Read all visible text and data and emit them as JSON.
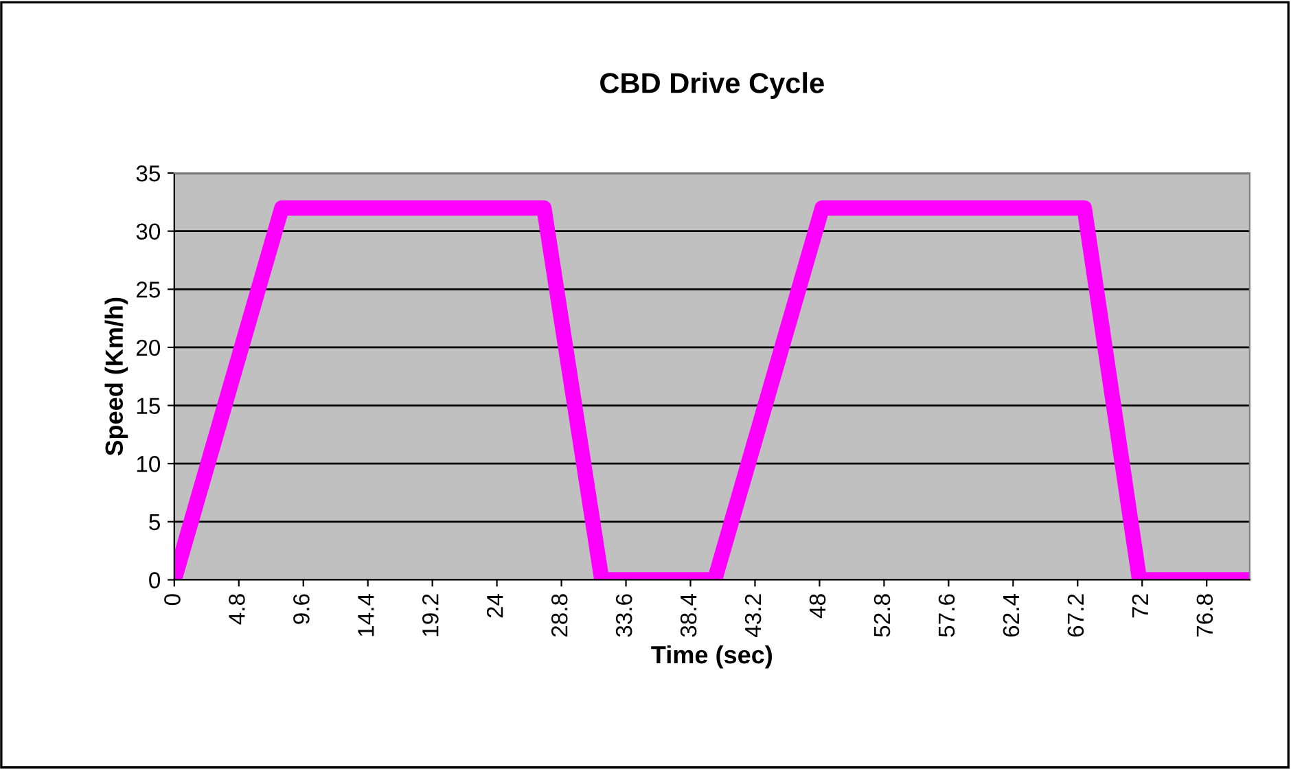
{
  "chart_data": {
    "type": "line",
    "title": "CBD Drive Cycle",
    "xlabel": "Time (sec)",
    "ylabel": "Speed (Km/h)",
    "x": [
      0,
      8,
      27.5,
      31.8,
      40.2,
      48.2,
      67.7,
      71.8,
      80
    ],
    "series": [
      {
        "color": "#ff00ff",
        "values": [
          0,
          32,
          32,
          0,
          0,
          32,
          32,
          0,
          0
        ]
      }
    ],
    "xlim": [
      0,
      80
    ],
    "xticks": [
      0,
      4.8,
      9.6,
      14.4,
      19.2,
      24,
      28.8,
      33.6,
      38.4,
      43.2,
      48,
      52.8,
      57.6,
      62.4,
      67.2,
      72,
      76.8
    ],
    "ylim": [
      0,
      35
    ],
    "yticks": [
      0,
      5,
      10,
      15,
      20,
      25,
      30,
      35
    ],
    "grid": "y",
    "legend": false,
    "line_style": "solid"
  }
}
